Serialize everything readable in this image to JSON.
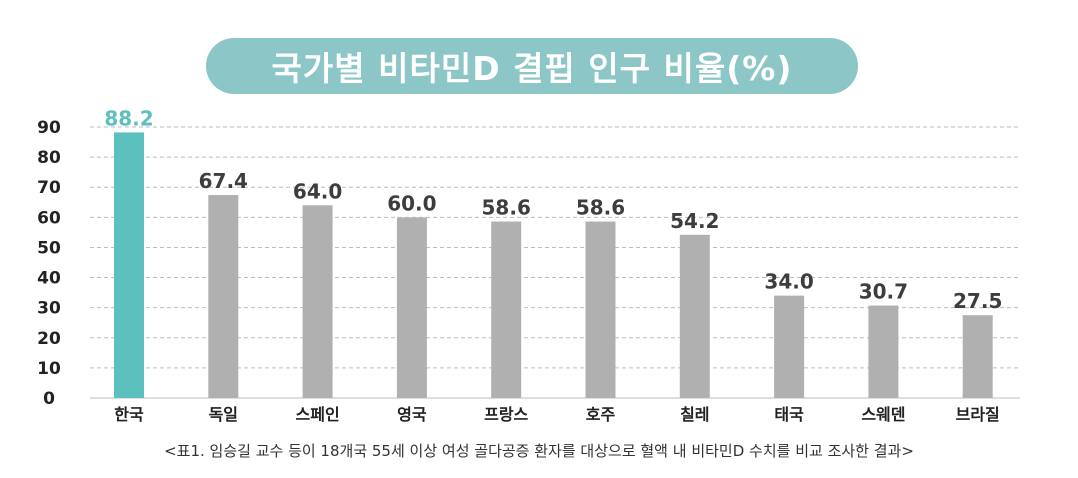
{
  "title": "국가별 비타민D 결핍 인구 비율(%)",
  "caption": "<표1. 임승길 교수 등이 18개국 55세 이상 여성 골다공증 환자를 대상으로 혈액 내 비타민D 수치를 비교 조사한 결과>",
  "colors": {
    "highlight": "#5cc0be",
    "bar": "#b0b0b0",
    "highlight_label": "#5cc0be",
    "label": "#3d3d3d",
    "grid": "#bdbdbd"
  },
  "chart_data": {
    "type": "bar",
    "categories": [
      "한국",
      "독일",
      "스페인",
      "영국",
      "프랑스",
      "호주",
      "칠레",
      "태국",
      "스웨덴",
      "브라질"
    ],
    "values": [
      88.2,
      67.4,
      64.0,
      60.0,
      58.6,
      58.6,
      54.2,
      34.0,
      30.7,
      27.5
    ],
    "value_labels": [
      "88.2",
      "67.4",
      "64.0",
      "60.0",
      "58.6",
      "58.6",
      "54.2",
      "34.0",
      "30.7",
      "27.5"
    ],
    "highlight_index": 0,
    "yticks": [
      "0",
      "10",
      "20",
      "30",
      "40",
      "50",
      "60",
      "70",
      "80",
      "90"
    ],
    "ylim": [
      0,
      90
    ],
    "grid": true,
    "grid_style": "dashed",
    "legend": "none"
  }
}
